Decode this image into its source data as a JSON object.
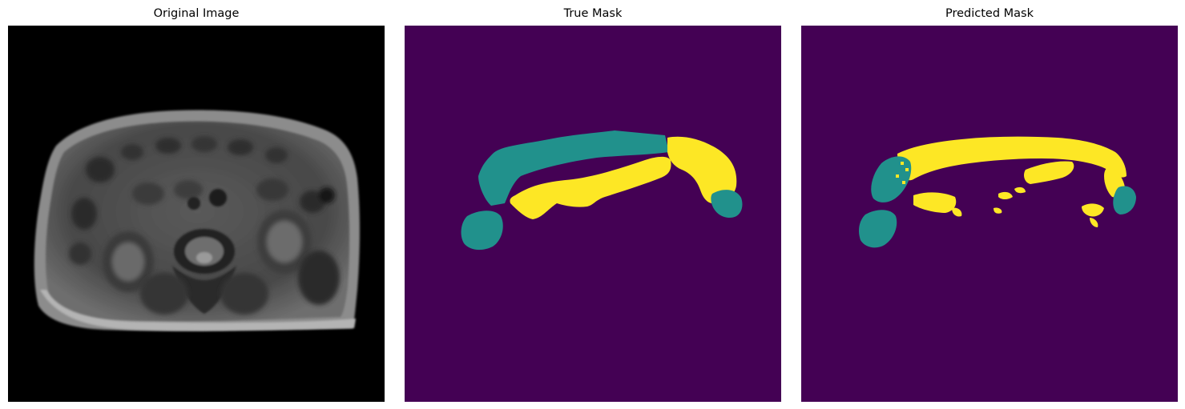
{
  "figure": {
    "panels": [
      {
        "title": "Original Image"
      },
      {
        "title": "True Mask"
      },
      {
        "title": "Predicted Mask"
      }
    ]
  },
  "colors": {
    "background": "#440154",
    "class_1": "#21918c",
    "class_2": "#fde725",
    "mri_background": "#000000"
  }
}
